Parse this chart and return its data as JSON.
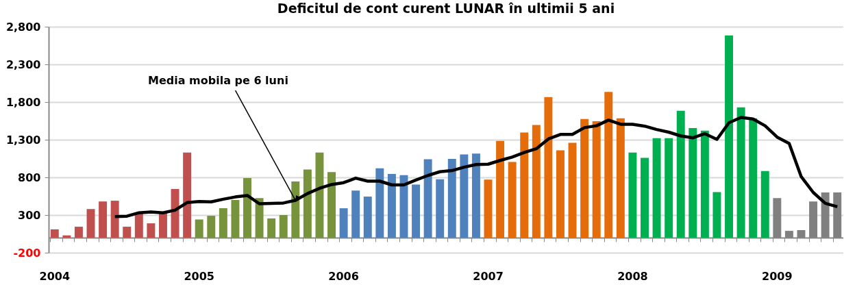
{
  "chart_data": {
    "type": "bar",
    "title": "Deficitul de cont curent LUNAR în ultimii 5 ani",
    "categories": [
      "2004",
      null,
      null,
      null,
      null,
      null,
      null,
      null,
      null,
      null,
      null,
      null,
      "2005",
      null,
      null,
      null,
      null,
      null,
      null,
      null,
      null,
      null,
      null,
      null,
      "2006",
      null,
      null,
      null,
      null,
      null,
      null,
      null,
      null,
      null,
      null,
      null,
      "2007",
      null,
      null,
      null,
      null,
      null,
      null,
      null,
      null,
      null,
      null,
      null,
      "2008",
      null,
      null,
      null,
      null,
      null,
      null,
      null,
      null,
      null,
      null,
      null,
      "2009",
      null,
      null,
      null,
      null,
      null
    ],
    "series": [
      {
        "colors": [
          "#c0504d",
          "#c0504d",
          "#c0504d",
          "#c0504d",
          "#c0504d",
          "#c0504d",
          "#c0504d",
          "#c0504d",
          "#c0504d",
          "#c0504d",
          "#c0504d",
          "#c0504d",
          "#77933c",
          "#77933c",
          "#77933c",
          "#77933c",
          "#77933c",
          "#77933c",
          "#77933c",
          "#77933c",
          "#77933c",
          "#77933c",
          "#77933c",
          "#77933c",
          "#4f81bd",
          "#4f81bd",
          "#4f81bd",
          "#4f81bd",
          "#4f81bd",
          "#4f81bd",
          "#4f81bd",
          "#4f81bd",
          "#4f81bd",
          "#4f81bd",
          "#4f81bd",
          "#4f81bd",
          "#e46c0a",
          "#e46c0a",
          "#e46c0a",
          "#e46c0a",
          "#e46c0a",
          "#e46c0a",
          "#e46c0a",
          "#e46c0a",
          "#e46c0a",
          "#e46c0a",
          "#e46c0a",
          "#e46c0a",
          "#00b050",
          "#00b050",
          "#00b050",
          "#00b050",
          "#00b050",
          "#00b050",
          "#00b050",
          "#00b050",
          "#00b050",
          "#00b050",
          "#00b050",
          "#00b050",
          "#808080",
          "#808080",
          "#808080",
          "#808080",
          "#808080",
          "#808080"
        ],
        "values": [
          110,
          30,
          145,
          380,
          480,
          490,
          145,
          320,
          190,
          330,
          645,
          1130,
          240,
          290,
          390,
          500,
          790,
          525,
          255,
          300,
          745,
          905,
          1130,
          870,
          390,
          625,
          545,
          920,
          845,
          830,
          705,
          1040,
          775,
          1045,
          1105,
          1115,
          770,
          1285,
          1005,
          1395,
          1495,
          1865,
          1160,
          1260,
          1575,
          1545,
          1935,
          1585,
          1130,
          1060,
          1320,
          1320,
          1685,
          1455,
          1420,
          605,
          2685,
          1730,
          1585,
          885,
          525,
          90,
          100,
          480,
          600,
          600
        ]
      },
      {
        "type": "line",
        "name": "Media mobila pe 6 luni",
        "color": "#000000",
        "values": [
          null,
          null,
          null,
          null,
          null,
          280,
          285,
          330,
          340,
          330,
          365,
          465,
          480,
          475,
          510,
          540,
          560,
          450,
          455,
          460,
          495,
          585,
          655,
          705,
          730,
          790,
          750,
          750,
          700,
          700,
          765,
          825,
          875,
          890,
          935,
          970,
          975,
          1025,
          1070,
          1130,
          1180,
          1310,
          1370,
          1370,
          1460,
          1485,
          1560,
          1505,
          1505,
          1480,
          1435,
          1400,
          1350,
          1325,
          1380,
          1305,
          1525,
          1595,
          1575,
          1485,
          1335,
          1250,
          810,
          600,
          455,
          410
        ]
      }
    ],
    "ylim": [
      -200,
      2800
    ],
    "yticks": [
      {
        "value": -200,
        "label": "-200"
      },
      300,
      800,
      {
        "value": 1300,
        "label": "1,300"
      },
      {
        "value": 1800,
        "label": "1,800"
      },
      {
        "value": 2300,
        "label": "2,300"
      },
      {
        "value": 2800,
        "label": "2,800"
      }
    ],
    "grid": "y"
  }
}
